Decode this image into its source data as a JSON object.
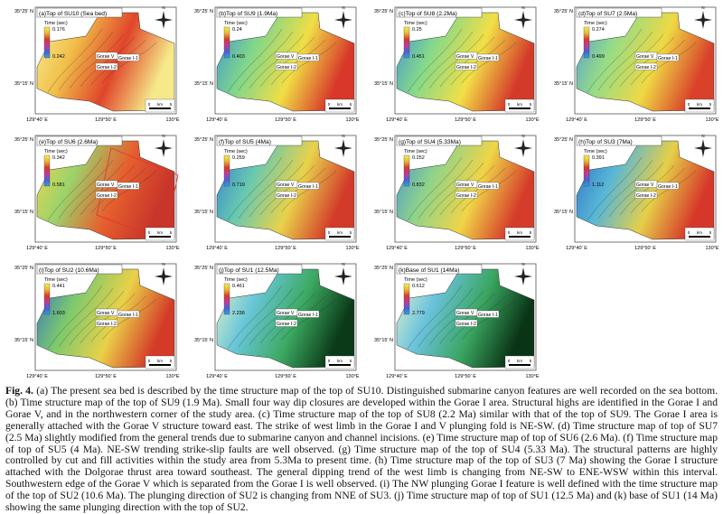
{
  "figure": {
    "common": {
      "lat_labels": [
        "35°25' N",
        "35°15' N"
      ],
      "lon_labels": [
        "129°40' E",
        "129°50' E",
        "130°E"
      ],
      "time_label": "Time (sec)",
      "scale_labels": [
        "0",
        "km",
        "5"
      ],
      "north": "N",
      "gorae_labels": [
        "Gorae V",
        "Gorae I-1",
        "Gorae I-2"
      ]
    },
    "panels": [
      {
        "title": "(a)Top of SU10 (Sea bed)",
        "time_min": "0.176",
        "time_max": "0.242"
      },
      {
        "title": "(b)Top of SU9 (1.9Ma)",
        "time_min": "0.24",
        "time_max": "0.403"
      },
      {
        "title": "(c)Top of SU8 (2.2Ma)",
        "time_min": "0.25",
        "time_max": "0.451"
      },
      {
        "title": "(d)Top of SU7 (2.5Ma)",
        "time_min": "0.274",
        "time_max": "0.499"
      },
      {
        "title": "(e)Top of SU6 (2.6Ma)",
        "time_min": "0.342",
        "time_max": "0.581"
      },
      {
        "title": "(f)Top of SU5 (4Ma)",
        "time_min": "0.259",
        "time_max": "0.719"
      },
      {
        "title": "(g)Top of SU4 (5.33Ma)",
        "time_min": "0.252",
        "time_max": "0.832"
      },
      {
        "title": "(h)Top of SU3 (7Ma)",
        "time_min": "0.391",
        "time_max": "1.112"
      },
      {
        "title": "(i)Top of SU2 (10.6Ma)",
        "time_min": "0.441",
        "time_max": "1.603"
      },
      {
        "title": "(j)Top of SU1 (12.5Ma)",
        "time_min": "0.461",
        "time_max": "2.236"
      },
      {
        "title": "(k)Base of SU1 (14Ma)",
        "time_min": "0.612",
        "time_max": "2.779"
      }
    ],
    "caption": {
      "label": "Fig. 4.",
      "text": "(a) The present sea bed is described by the time structure map of the top of SU10. Distinguished submarine canyon features are well recorded on the sea bottom. (b) Time structure map of the top of SU9 (1.9 Ma). Small four way dip closures are developed within the Gorae I area. Structural highs are identified in the Gorae I and Gorae V, and in the northwestern corner of the study area. (c) Time structure map of the top of SU8 (2.2 Ma) similar with that of the top of SU9. The Gorae I area is generally attached with the Gorae V structure toward east. The strike of west limb in the Gorae I and V plunging fold is NE-SW. (d) Time structure map of top of SU7 (2.5 Ma) slightly modified from the general trends due to submarine canyon and channel incisions. (e) Time structure map of top of SU6 (2.6 Ma). (f) Time structure map of top of SU5 (4 Ma). NE-SW trending strike-slip faults are well observed. (g) Time structure map of the top of SU4 (5.33 Ma). The structural patterns are highly controlled by cut and fill activities within the study area from 5.3Ma to present time. (h) Time structure map of the top of SU3 (7 Ma) showing the Gorae I structure attached with the Dolgorae thrust area toward southeast. The general dipping trend of the west limb is changing from NE-SW to ENE-WSW within this interval. Southwestern edge of the Gorae V which is separated from the Gorae I is well observed. (i) The NW plunging Gorae I feature is well defined with the time structure map of the top of SU2 (10.6 Ma). The plunging direction of SU2 is changing from NNE of SU3. (j) Time structure map of top of SU1 (12.5 Ma) and (k) base of SU1 (14 Ma) showing the same plunging direction with the top of SU2."
    }
  }
}
